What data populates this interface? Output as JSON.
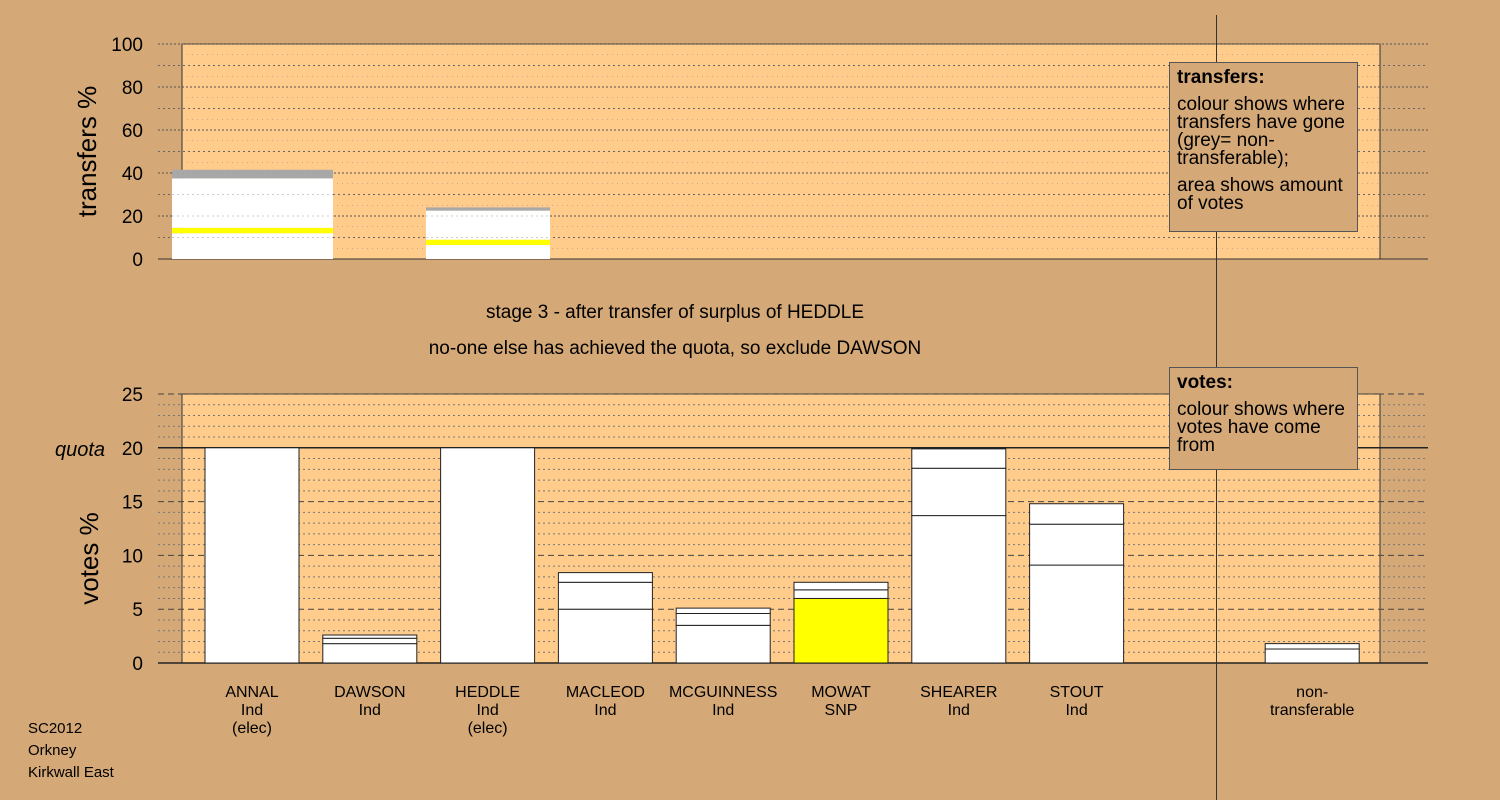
{
  "chart_data": [
    {
      "type": "bar",
      "ylabel": "transfers %",
      "ylim": [
        0,
        100
      ],
      "yticks": [
        0,
        20,
        40,
        60,
        80,
        100
      ],
      "bars": [
        {
          "category": "ANNAL",
          "segments": [
            {
              "value": 12,
              "color": "#ffffff"
            },
            {
              "value": 2.5,
              "color": "#ffff00"
            },
            {
              "value": 23,
              "color": "#ffffff"
            },
            {
              "value": 4,
              "color": "#a8a8a8"
            }
          ]
        },
        {
          "category": "HEDDLE",
          "segments": [
            {
              "value": 6.5,
              "color": "#ffffff"
            },
            {
              "value": 2.5,
              "color": "#ffff00"
            },
            {
              "value": 13.5,
              "color": "#ffffff"
            },
            {
              "value": 1.5,
              "color": "#a8a8a8"
            }
          ]
        }
      ]
    },
    {
      "type": "bar",
      "ylabel": "votes %",
      "ylim": [
        0,
        25
      ],
      "yticks": [
        0,
        5,
        10,
        15,
        20,
        25
      ],
      "quota": 20,
      "quota_label": "quota",
      "categories": [
        {
          "name": "ANNAL",
          "party": "Ind",
          "note": "(elec)"
        },
        {
          "name": "DAWSON",
          "party": "Ind",
          "note": ""
        },
        {
          "name": "HEDDLE",
          "party": "Ind",
          "note": "(elec)"
        },
        {
          "name": "MACLEOD",
          "party": "Ind",
          "note": ""
        },
        {
          "name": "MCGUINNESS",
          "party": "Ind",
          "note": ""
        },
        {
          "name": "MOWAT",
          "party": "SNP",
          "note": ""
        },
        {
          "name": "SHEARER",
          "party": "Ind",
          "note": ""
        },
        {
          "name": "STOUT",
          "party": "Ind",
          "note": ""
        },
        {
          "name": "",
          "party": "",
          "note": ""
        },
        {
          "name": "non-",
          "party": "transferable",
          "note": ""
        }
      ],
      "stacks": [
        [
          {
            "value": 20,
            "color": "#ffffff"
          }
        ],
        [
          {
            "value": 1.8,
            "color": "#ffffff"
          },
          {
            "value": 0.5,
            "color": "#ffffff"
          },
          {
            "value": 0.3,
            "color": "#ffffff"
          }
        ],
        [
          {
            "value": 20,
            "color": "#ffffff"
          }
        ],
        [
          {
            "value": 5,
            "color": "#ffffff"
          },
          {
            "value": 2.5,
            "color": "#ffffff"
          },
          {
            "value": 0.9,
            "color": "#ffffff"
          }
        ],
        [
          {
            "value": 3.5,
            "color": "#ffffff"
          },
          {
            "value": 1.1,
            "color": "#ffffff"
          },
          {
            "value": 0.5,
            "color": "#ffffff"
          }
        ],
        [
          {
            "value": 6,
            "color": "#ffff00"
          },
          {
            "value": 0.8,
            "color": "#ffffff"
          },
          {
            "value": 0.7,
            "color": "#ffffff"
          }
        ],
        [
          {
            "value": 13.7,
            "color": "#ffffff"
          },
          {
            "value": 4.4,
            "color": "#ffffff"
          },
          {
            "value": 1.8,
            "color": "#ffffff"
          }
        ],
        [
          {
            "value": 9.1,
            "color": "#ffffff"
          },
          {
            "value": 3.8,
            "color": "#ffffff"
          },
          {
            "value": 1.9,
            "color": "#ffffff"
          }
        ],
        [],
        [
          {
            "value": 1.3,
            "color": "#ffffff"
          },
          {
            "value": 0.5,
            "color": "#ffffff"
          }
        ]
      ]
    }
  ],
  "stage_text": {
    "line1": "stage 3 - after transfer of surplus of HEDDLE",
    "line2": "no-one else has achieved the quota, so exclude DAWSON"
  },
  "legend_transfers": {
    "title": "transfers:",
    "p1": "colour shows where transfers have gone (grey= non-transferable);",
    "p2": "area shows amount of votes"
  },
  "legend_votes": {
    "title": "votes:",
    "p1": "colour shows where votes have come from"
  },
  "source": {
    "line1": "SC2012",
    "line2": "Orkney",
    "line3": "Kirkwall East"
  },
  "colors": {
    "background": "#d4a877",
    "plot_area": "#ffcc8c",
    "transfer_highlight": "#ffff00",
    "non_transferable": "#a8a8a8"
  }
}
